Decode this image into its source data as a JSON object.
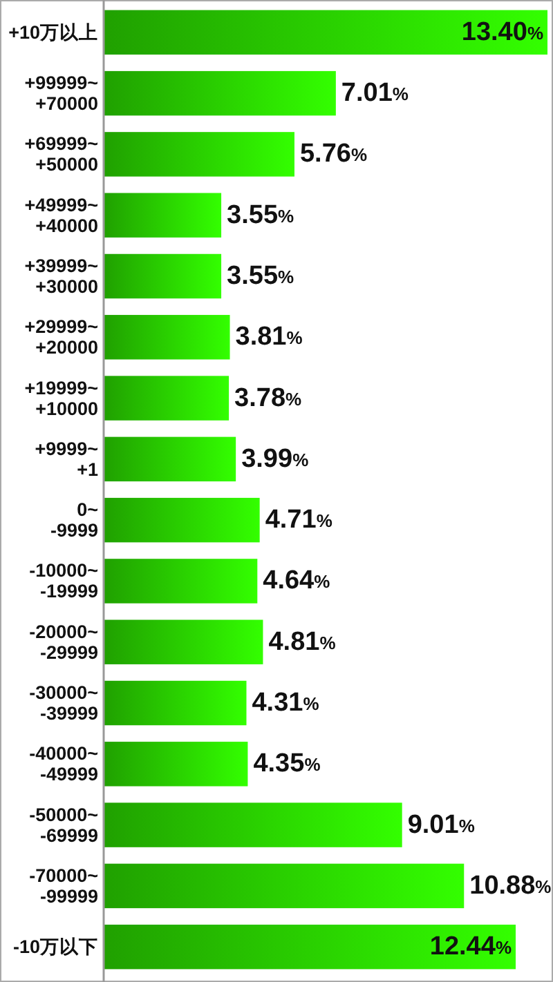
{
  "chart_data": {
    "type": "bar",
    "orientation": "horizontal",
    "color": "#33ff00",
    "categories": [
      "+10万以上",
      "+99999~\n+70000",
      "+69999~\n+50000",
      "+49999~\n+40000",
      "+39999~\n+30000",
      "+29999~\n+20000",
      "+19999~\n+10000",
      "+9999~\n+1",
      "0~\n-9999",
      "-10000~\n-19999",
      "-20000~\n-29999",
      "-30000~\n-39999",
      "-40000~\n-49999",
      "-50000~\n-69999",
      "-70000~\n-99999",
      "-10万以下"
    ],
    "values": [
      13.4,
      7.01,
      5.76,
      3.55,
      3.55,
      3.81,
      3.78,
      3.99,
      4.71,
      4.64,
      4.81,
      4.31,
      4.35,
      9.01,
      10.88,
      12.44
    ],
    "value_labels": [
      "13.40%",
      "7.01%",
      "5.76%",
      "3.55%",
      "3.55%",
      "3.81%",
      "3.78%",
      "3.99%",
      "4.71%",
      "4.64%",
      "4.81%",
      "4.31%",
      "4.35%",
      "9.01%",
      "10.88%",
      "12.44%"
    ]
  }
}
